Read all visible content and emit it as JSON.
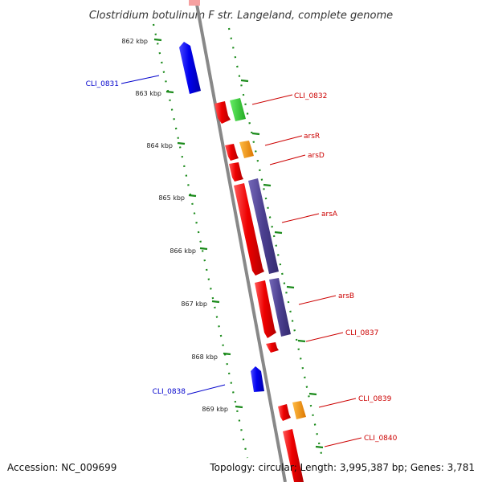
{
  "title": "Clostridium botulinum F str. Langeland, complete genome",
  "accession": "Accession: NC_009699",
  "topology": "Topology: circular; Length: 3,995,387 bp; Genes: 3,781",
  "ticks": [
    "862 kbp",
    "863 kbp",
    "864 kbp",
    "865 kbp",
    "866 kbp",
    "867 kbp",
    "868 kbp",
    "869 kbp"
  ],
  "genes": [
    {
      "name": "CLI_0831",
      "strand": "minus",
      "color": "#0000ee"
    },
    {
      "name": "CLI_0832",
      "strand": "plus",
      "color": "#dd0000"
    },
    {
      "name": "arsR",
      "strand": "plus",
      "color": "#dd0000"
    },
    {
      "name": "arsD",
      "strand": "plus",
      "color": "#dd0000"
    },
    {
      "name": "arsA",
      "strand": "plus",
      "color": "#dd0000"
    },
    {
      "name": "arsB",
      "strand": "plus",
      "color": "#dd0000"
    },
    {
      "name": "CLI_0837",
      "strand": "plus",
      "color": "#dd0000"
    },
    {
      "name": "CLI_0838",
      "strand": "minus",
      "color": "#0000ee"
    },
    {
      "name": "CLI_0839",
      "strand": "plus",
      "color": "#dd0000"
    },
    {
      "name": "CLI_0840",
      "strand": "plus",
      "color": "#dd0000"
    }
  ],
  "colors": {
    "backbone": "#8a8a8a",
    "plus_cds": "#ee0000",
    "minus_cds": "#0000ee",
    "green_feature": "#33cc33",
    "orange_feature": "#ff9900",
    "purple_feature": "#4b3f8f",
    "dots": "#1a8a1a"
  }
}
